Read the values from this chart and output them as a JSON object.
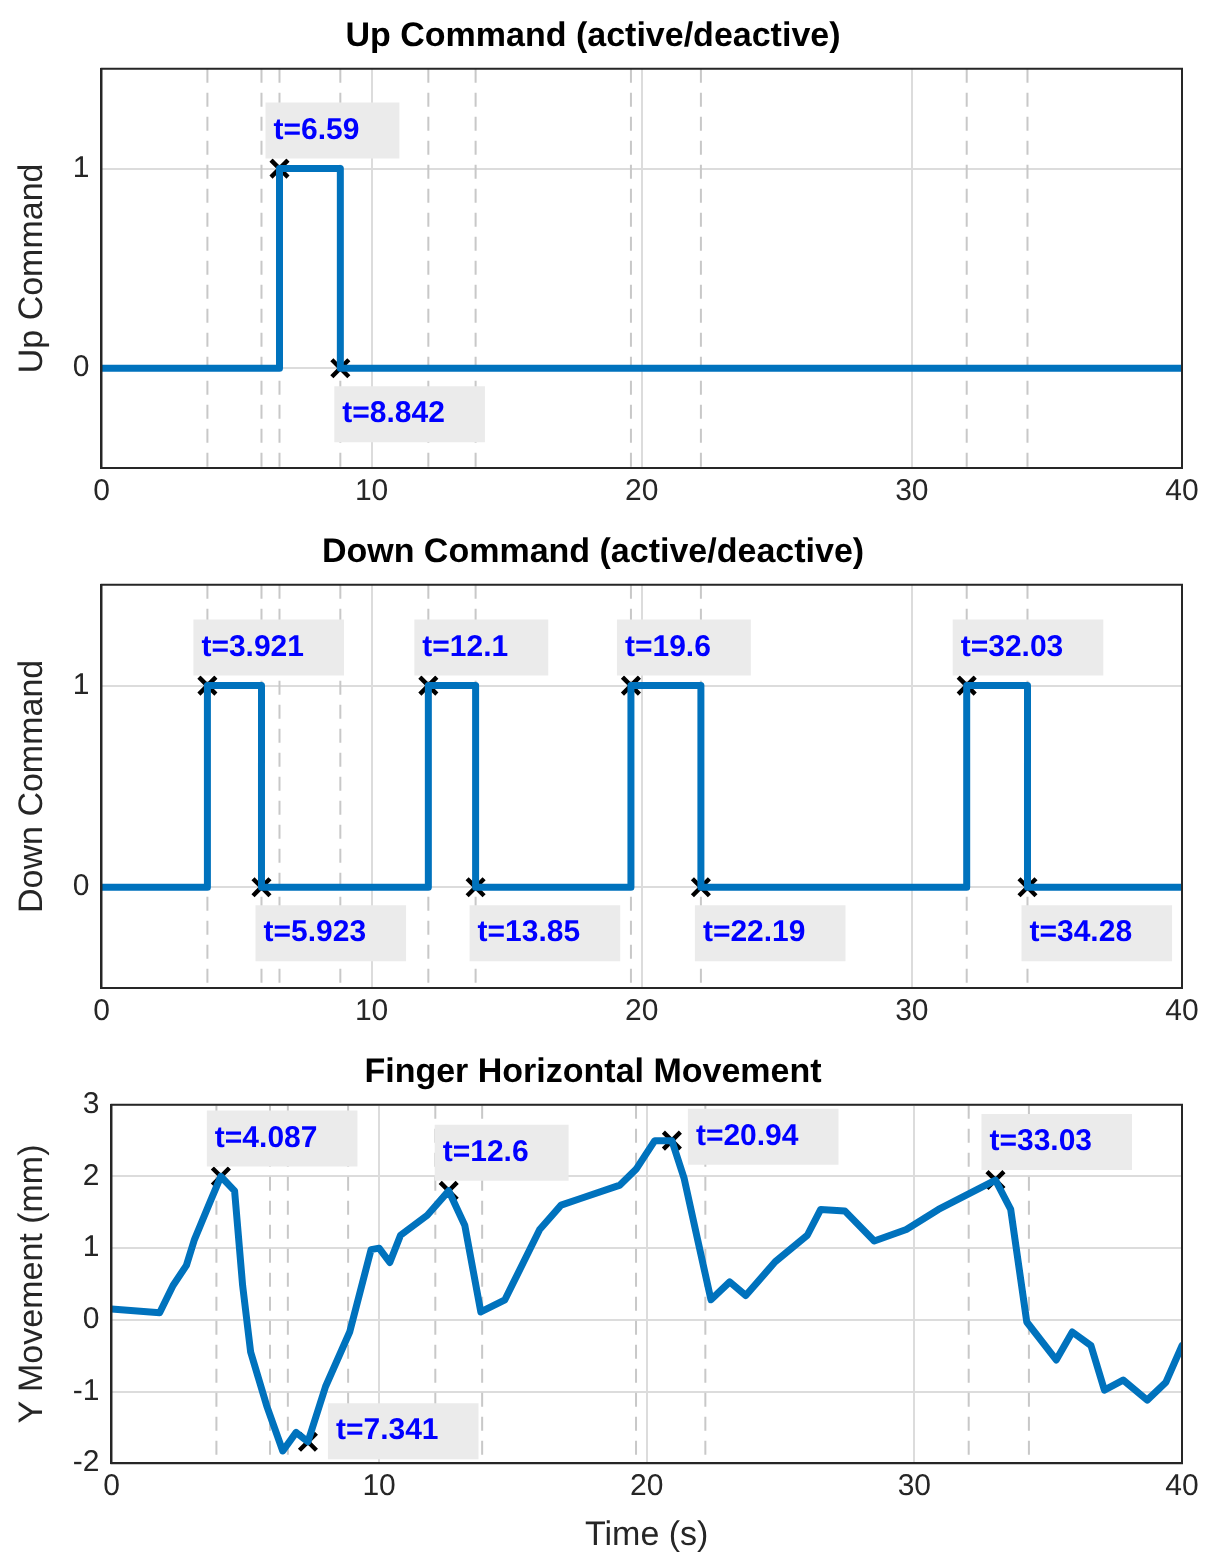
{
  "chart_data": [
    {
      "type": "line",
      "title": "Up Command (active/deactive)",
      "ylabel": "Up Command",
      "xlim": [
        0,
        40
      ],
      "xticks": [
        0,
        10,
        20,
        30,
        40
      ],
      "ylim": [
        -0.5,
        1.5
      ],
      "yticks": [
        0,
        1
      ],
      "grid": true,
      "series": [
        {
          "color": "#0072bd",
          "x": [
            0,
            6.59,
            6.59,
            8.842,
            8.842,
            40
          ],
          "values": [
            0,
            0,
            1,
            1,
            0,
            0
          ]
        },
        {
          "type": "scatter",
          "color": "#000000",
          "marker": "cross",
          "x": [
            6.59,
            8.842
          ],
          "values": [
            1,
            0
          ]
        }
      ],
      "ref_lines": [
        {
          "axis": "x",
          "value": 3.921,
          "color": "#c8c8c8",
          "line_style": "dashed"
        },
        {
          "axis": "x",
          "value": 5.923,
          "color": "#c8c8c8",
          "line_style": "dashed"
        },
        {
          "axis": "x",
          "value": 6.59,
          "color": "#c8c8c8",
          "line_style": "dashed"
        },
        {
          "axis": "x",
          "value": 8.842,
          "color": "#c8c8c8",
          "line_style": "dashed"
        },
        {
          "axis": "x",
          "value": 12.1,
          "color": "#c8c8c8",
          "line_style": "dashed"
        },
        {
          "axis": "x",
          "value": 13.85,
          "color": "#c8c8c8",
          "line_style": "dashed"
        },
        {
          "axis": "x",
          "value": 19.6,
          "color": "#c8c8c8",
          "line_style": "dashed"
        },
        {
          "axis": "x",
          "value": 22.19,
          "color": "#c8c8c8",
          "line_style": "dashed"
        },
        {
          "axis": "x",
          "value": 32.03,
          "color": "#c8c8c8",
          "line_style": "dashed"
        },
        {
          "axis": "x",
          "value": 34.28,
          "color": "#c8c8c8",
          "line_style": "dashed"
        }
      ],
      "annotations": [
        {
          "text": "t=6.59",
          "x": 6.59,
          "y": 1
        },
        {
          "text": "t=8.842",
          "x": 8.842,
          "y": 0
        }
      ]
    },
    {
      "type": "line",
      "title": "Down Command (active/deactive)",
      "ylabel": "Down Command",
      "xlim": [
        0,
        40
      ],
      "xticks": [
        0,
        10,
        20,
        30,
        40
      ],
      "ylim": [
        -0.5,
        1.5
      ],
      "yticks": [
        0,
        1
      ],
      "grid": true,
      "series": [
        {
          "color": "#0072bd",
          "x": [
            0,
            3.921,
            3.921,
            5.923,
            5.923,
            12.1,
            12.1,
            13.85,
            13.85,
            19.6,
            19.6,
            22.19,
            22.19,
            32.03,
            32.03,
            34.28,
            34.28,
            40
          ],
          "values": [
            0,
            0,
            1,
            1,
            0,
            0,
            1,
            1,
            0,
            0,
            1,
            1,
            0,
            0,
            1,
            1,
            0,
            0
          ]
        },
        {
          "type": "scatter",
          "color": "#000000",
          "marker": "cross",
          "x": [
            3.921,
            5.923,
            12.1,
            13.85,
            19.6,
            22.19,
            32.03,
            34.28
          ],
          "values": [
            1,
            0,
            1,
            0,
            1,
            0,
            1,
            0
          ]
        }
      ],
      "ref_lines": [
        {
          "axis": "x",
          "value": 3.921,
          "color": "#c8c8c8",
          "line_style": "dashed"
        },
        {
          "axis": "x",
          "value": 5.923,
          "color": "#c8c8c8",
          "line_style": "dashed"
        },
        {
          "axis": "x",
          "value": 6.59,
          "color": "#c8c8c8",
          "line_style": "dashed"
        },
        {
          "axis": "x",
          "value": 8.842,
          "color": "#c8c8c8",
          "line_style": "dashed"
        },
        {
          "axis": "x",
          "value": 12.1,
          "color": "#c8c8c8",
          "line_style": "dashed"
        },
        {
          "axis": "x",
          "value": 13.85,
          "color": "#c8c8c8",
          "line_style": "dashed"
        },
        {
          "axis": "x",
          "value": 19.6,
          "color": "#c8c8c8",
          "line_style": "dashed"
        },
        {
          "axis": "x",
          "value": 22.19,
          "color": "#c8c8c8",
          "line_style": "dashed"
        },
        {
          "axis": "x",
          "value": 32.03,
          "color": "#c8c8c8",
          "line_style": "dashed"
        },
        {
          "axis": "x",
          "value": 34.28,
          "color": "#c8c8c8",
          "line_style": "dashed"
        }
      ],
      "annotations": [
        {
          "text": "t=3.921",
          "x": 3.921,
          "y": 1
        },
        {
          "text": "t=5.923",
          "x": 5.923,
          "y": 0
        },
        {
          "text": "t=12.1",
          "x": 12.1,
          "y": 1
        },
        {
          "text": "t=13.85",
          "x": 13.85,
          "y": 0
        },
        {
          "text": "t=19.6",
          "x": 19.6,
          "y": 1
        },
        {
          "text": "t=22.19",
          "x": 22.19,
          "y": 0
        },
        {
          "text": "t=32.03",
          "x": 32.03,
          "y": 1
        },
        {
          "text": "t=34.28",
          "x": 34.28,
          "y": 0
        }
      ]
    },
    {
      "type": "line",
      "title": "Finger Horizontal Movement",
      "xlabel": "Time (s)",
      "ylabel": "Y Movement (mm)",
      "xlim": [
        0,
        40
      ],
      "xticks": [
        0,
        10,
        20,
        30,
        40
      ],
      "ylim": [
        -2,
        3
      ],
      "yticks": [
        -2,
        -1,
        0,
        1,
        2,
        3
      ],
      "grid": true,
      "series": [
        {
          "color": "#0072bd",
          "x": [
            0,
            1.8,
            2.3,
            2.8,
            3.1,
            3.7,
            4.087,
            4.6,
            4.9,
            5.2,
            5.8,
            6.4,
            6.9,
            7.341,
            8.0,
            8.9,
            9.7,
            10.0,
            10.4,
            10.8,
            11.8,
            12.6,
            13.2,
            13.8,
            14.7,
            16.0,
            16.8,
            17.5,
            19.0,
            19.6,
            20.3,
            20.94,
            21.4,
            21.9,
            22.4,
            23.1,
            23.7,
            24.8,
            26.0,
            26.5,
            27.4,
            28.5,
            29.7,
            30.9,
            33.03,
            33.6,
            34.2,
            35.3,
            35.9,
            36.6,
            37.1,
            37.8,
            38.7,
            39.4,
            40.0
          ],
          "values": [
            0.15,
            0.1,
            0.48,
            0.76,
            1.12,
            1.66,
            2.0,
            1.8,
            0.48,
            -0.45,
            -1.2,
            -1.83,
            -1.57,
            -1.7,
            -0.93,
            -0.17,
            0.98,
            1.0,
            0.8,
            1.18,
            1.46,
            1.8,
            1.32,
            0.11,
            0.28,
            1.26,
            1.6,
            1.69,
            1.88,
            2.1,
            2.5,
            2.5,
            1.97,
            1.12,
            0.28,
            0.53,
            0.34,
            0.81,
            1.18,
            1.54,
            1.52,
            1.1,
            1.26,
            1.54,
            1.95,
            1.54,
            -0.03,
            -0.56,
            -0.17,
            -0.36,
            -0.98,
            -0.84,
            -1.12,
            -0.87,
            -0.36
          ]
        },
        {
          "type": "scatter",
          "color": "#000000",
          "marker": "cross",
          "x": [
            4.087,
            7.341,
            12.6,
            20.94,
            33.03
          ],
          "values": [
            2.0,
            -1.7,
            1.8,
            2.5,
            1.95
          ]
        }
      ],
      "ref_lines": [
        {
          "axis": "x",
          "value": 3.921,
          "color": "#c8c8c8",
          "line_style": "dashed"
        },
        {
          "axis": "x",
          "value": 5.923,
          "color": "#c8c8c8",
          "line_style": "dashed"
        },
        {
          "axis": "x",
          "value": 6.59,
          "color": "#c8c8c8",
          "line_style": "dashed"
        },
        {
          "axis": "x",
          "value": 8.842,
          "color": "#c8c8c8",
          "line_style": "dashed"
        },
        {
          "axis": "x",
          "value": 12.1,
          "color": "#c8c8c8",
          "line_style": "dashed"
        },
        {
          "axis": "x",
          "value": 13.85,
          "color": "#c8c8c8",
          "line_style": "dashed"
        },
        {
          "axis": "x",
          "value": 19.6,
          "color": "#c8c8c8",
          "line_style": "dashed"
        },
        {
          "axis": "x",
          "value": 22.19,
          "color": "#c8c8c8",
          "line_style": "dashed"
        },
        {
          "axis": "x",
          "value": 32.03,
          "color": "#c8c8c8",
          "line_style": "dashed"
        },
        {
          "axis": "x",
          "value": 34.28,
          "color": "#c8c8c8",
          "line_style": "dashed"
        }
      ],
      "annotations": [
        {
          "text": "t=4.087",
          "x": 4.087,
          "y": 2.0
        },
        {
          "text": "t=7.341",
          "x": 7.341,
          "y": -1.7
        },
        {
          "text": "t=12.6",
          "x": 12.6,
          "y": 1.8
        },
        {
          "text": "t=20.94",
          "x": 20.94,
          "y": 2.5
        },
        {
          "text": "t=33.03",
          "x": 33.03,
          "y": 1.95
        }
      ]
    }
  ]
}
